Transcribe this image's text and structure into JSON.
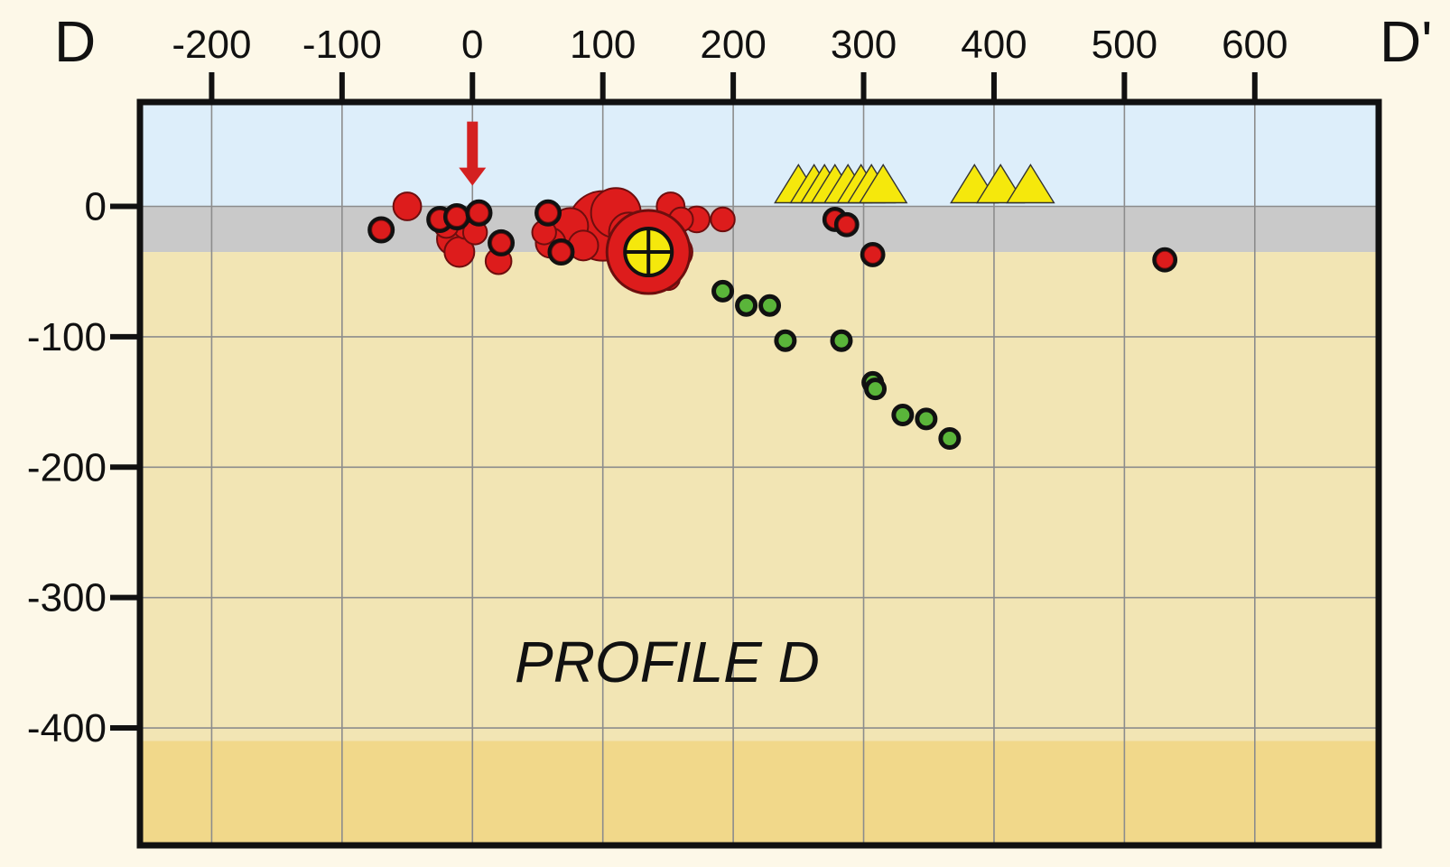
{
  "chart_data": {
    "type": "scatter",
    "title": "PROFILE D",
    "left_end_label": "D",
    "right_end_label": "D'",
    "xlim": [
      -255,
      695
    ],
    "ylim": [
      -490,
      80
    ],
    "x_ticks": [
      -200,
      -100,
      0,
      100,
      200,
      300,
      400,
      500,
      600
    ],
    "x_tick_labels": [
      "-200",
      "-100",
      "0",
      "100",
      "200",
      "300",
      "400",
      "500",
      "600"
    ],
    "y_ticks": [
      0,
      -100,
      -200,
      -300,
      -400
    ],
    "y_tick_labels": [
      "0",
      "-100",
      "-200",
      "-300",
      "-400"
    ],
    "grid": true,
    "layers": [
      {
        "from": 80,
        "to": 0,
        "color": "#ddeefa"
      },
      {
        "from": 0,
        "to": -35,
        "color": "#c9c9c9"
      },
      {
        "from": -35,
        "to": -410,
        "color": "#f2e5b4"
      },
      {
        "from": -410,
        "to": -490,
        "color": "#f1d88a"
      }
    ],
    "arrow_marker": {
      "x": 0,
      "y_top": 65,
      "y_bottom": 20,
      "color": "#d42020"
    },
    "colors": {
      "red_events": "#dd1c1c",
      "green_events": "#5ab53a",
      "triangles": "#f5e80c",
      "main_event": "#f5e80c",
      "outline": "#111111"
    },
    "series": [
      {
        "marker": "circle",
        "color": "#dd1c1c",
        "points": [
          {
            "x": -70,
            "y": -18,
            "r": 1.0
          },
          {
            "x": -50,
            "y": 0,
            "r": 1.4
          },
          {
            "x": -25,
            "y": -10,
            "r": 1.0
          },
          {
            "x": -20,
            "y": -15,
            "r": 1.2
          },
          {
            "x": -15,
            "y": -25,
            "r": 1.6
          },
          {
            "x": -12,
            "y": -8,
            "r": 1.0
          },
          {
            "x": -10,
            "y": -35,
            "r": 1.5
          },
          {
            "x": -5,
            "y": -15,
            "r": 1.3
          },
          {
            "x": 2,
            "y": -20,
            "r": 1.2
          },
          {
            "x": 5,
            "y": -5,
            "r": 1.0
          },
          {
            "x": 22,
            "y": -28,
            "r": 1.0
          },
          {
            "x": 20,
            "y": -42,
            "r": 1.3
          },
          {
            "x": 55,
            "y": -20,
            "r": 1.2
          },
          {
            "x": 58,
            "y": -5,
            "r": 1.0
          },
          {
            "x": 60,
            "y": -28,
            "r": 1.5
          },
          {
            "x": 68,
            "y": -35,
            "r": 1.0
          },
          {
            "x": 75,
            "y": -15,
            "r": 1.8
          },
          {
            "x": 85,
            "y": -30,
            "r": 1.5
          },
          {
            "x": 100,
            "y": -15,
            "r": 3.5
          },
          {
            "x": 110,
            "y": -5,
            "r": 2.5
          },
          {
            "x": 120,
            "y": -20,
            "r": 2.0
          },
          {
            "x": 145,
            "y": -45,
            "r": 1.5
          },
          {
            "x": 150,
            "y": -55,
            "r": 1.2
          },
          {
            "x": 155,
            "y": -35,
            "r": 1.8
          },
          {
            "x": 160,
            "y": -10,
            "r": 1.2
          },
          {
            "x": 172,
            "y": -10,
            "r": 1.3
          },
          {
            "x": 152,
            "y": 0,
            "r": 1.4
          },
          {
            "x": 192,
            "y": -10,
            "r": 1.2
          },
          {
            "x": 278,
            "y": -10,
            "r": 0.9
          },
          {
            "x": 287,
            "y": -14,
            "r": 0.9
          },
          {
            "x": 307,
            "y": -37,
            "r": 0.9
          },
          {
            "x": 531,
            "y": -41,
            "r": 0.9
          }
        ]
      },
      {
        "marker": "circle",
        "color": "#5ab53a",
        "points": [
          {
            "x": 192,
            "y": -65
          },
          {
            "x": 210,
            "y": -76
          },
          {
            "x": 228,
            "y": -76
          },
          {
            "x": 240,
            "y": -103
          },
          {
            "x": 283,
            "y": -103
          },
          {
            "x": 307,
            "y": -135
          },
          {
            "x": 309,
            "y": -140
          },
          {
            "x": 330,
            "y": -160
          },
          {
            "x": 348,
            "y": -163
          },
          {
            "x": 366,
            "y": -178
          }
        ]
      },
      {
        "marker": "triangle",
        "color": "#f5e80c",
        "points": [
          {
            "x": 250,
            "y": 15
          },
          {
            "x": 262,
            "y": 15
          },
          {
            "x": 270,
            "y": 15
          },
          {
            "x": 278,
            "y": 15
          },
          {
            "x": 288,
            "y": 15
          },
          {
            "x": 298,
            "y": 15
          },
          {
            "x": 306,
            "y": 15
          },
          {
            "x": 315,
            "y": 15
          },
          {
            "x": 385,
            "y": 15
          },
          {
            "x": 405,
            "y": 15
          },
          {
            "x": 428,
            "y": 15
          }
        ]
      },
      {
        "marker": "crossed-circle",
        "color": "#f5e80c",
        "points": [
          {
            "x": 135,
            "y": -35
          }
        ]
      }
    ]
  }
}
